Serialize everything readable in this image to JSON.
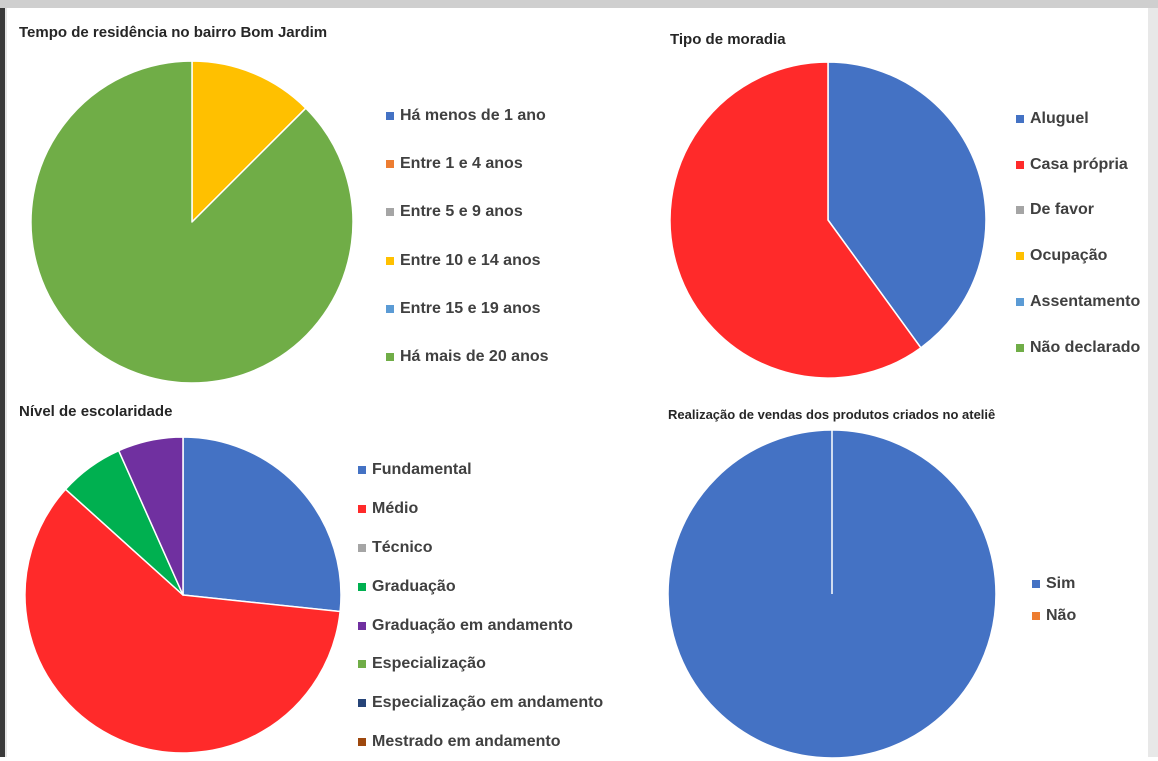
{
  "chart_data": [
    {
      "type": "pie",
      "title": "Tempo de residência no bairro Bom Jardim",
      "categories": [
        "Há menos de 1 ano",
        "Entre 1 e 4 anos",
        "Entre 5 e 9 anos",
        "Entre 10 e 14 anos",
        "Entre 15 e 19 anos",
        "Há mais de 20 anos"
      ],
      "values": [
        0,
        0,
        0,
        12.5,
        0,
        87.5
      ],
      "colors": [
        "#4472C4",
        "#ED7D31",
        "#A5A5A5",
        "#FFC000",
        "#5B9BD5",
        "#70AD47"
      ],
      "legend_position": "right"
    },
    {
      "type": "pie",
      "title": "Tipo de moradia",
      "categories": [
        "Aluguel",
        "Casa própria",
        "De favor",
        "Ocupação",
        "Assentamento",
        "Não declarado"
      ],
      "values": [
        40,
        60,
        0,
        0,
        0,
        0
      ],
      "colors": [
        "#4472C4",
        "#FF2A2A",
        "#A5A5A5",
        "#FFC000",
        "#5B9BD5",
        "#70AD47"
      ],
      "legend_position": "right"
    },
    {
      "type": "pie",
      "title": "Nível de escolaridade",
      "categories": [
        "Fundamental",
        "Médio",
        "Técnico",
        "Graduação",
        "Graduação em andamento",
        "Especialização",
        "Especialização em andamento",
        "Mestrado em andamento"
      ],
      "values": [
        25,
        56.25,
        0,
        6.25,
        6.25,
        0,
        0,
        0
      ],
      "colors": [
        "#4472C4",
        "#FF2A2A",
        "#A5A5A5",
        "#00B050",
        "#7030A0",
        "#70AD47",
        "#264478",
        "#9E480E"
      ],
      "legend_position": "right"
    },
    {
      "type": "pie",
      "title": "Realização de vendas dos produtos criados no ateliê",
      "categories": [
        "Sim",
        "Não"
      ],
      "values": [
        100,
        0
      ],
      "colors": [
        "#4472C4",
        "#ED7D31"
      ],
      "legend_position": "right"
    }
  ]
}
